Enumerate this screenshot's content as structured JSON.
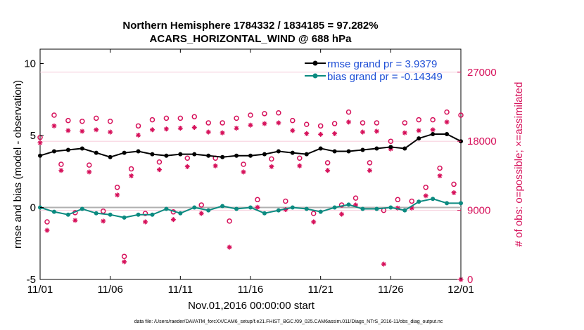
{
  "chart_data": {
    "type": "line",
    "title_line1": "Northern Hemisphere 1784332 / 1834185 = 97.282%",
    "title_line2": "ACARS_HORIZONTAL_WIND @ 688 hPa",
    "xlabel": "Nov.01,2016 00:00:00 start",
    "ylabel": "rmse and bias (model - observation)",
    "y2label": "# of obs: o=possible; ×=assimilated",
    "xlim": [
      0,
      30
    ],
    "ylim": [
      -5,
      11
    ],
    "y2lim": [
      0,
      30000
    ],
    "x_ticks": [
      0,
      5,
      10,
      15,
      20,
      25,
      30
    ],
    "x_tick_labels": [
      "11/01",
      "11/06",
      "11/11",
      "11/16",
      "11/21",
      "11/26",
      "12/01"
    ],
    "y_ticks": [
      -5,
      0,
      5,
      10
    ],
    "y_tick_labels": [
      "-5",
      "0",
      "5",
      "10"
    ],
    "y2_ticks": [
      0,
      9000,
      18000,
      27000
    ],
    "y2_tick_labels": [
      "0",
      "9000",
      "18000",
      "27000"
    ],
    "footnote": "data file: /Users/raeder/DAI/ATM_forcXX/CAM6_setup/f.e21.FHIST_BGC.f09_025.CAM6assim.011/Diags_NTrS_2016-11/obs_diag_output.nc",
    "colors": {
      "rmse": "#000000",
      "bias": "#0b8a80",
      "obs": "#d6105a",
      "legend_text": "#1f4fd6",
      "zero_line": "#b0b0b0"
    },
    "series": [
      {
        "name": "rmse grand pr = 3.9379",
        "key": "rmse",
        "x": [
          0,
          1,
          2,
          3,
          4,
          5,
          6,
          7,
          8,
          9,
          10,
          11,
          12,
          13,
          14,
          15,
          16,
          17,
          18,
          19,
          20,
          21,
          22,
          23,
          24,
          25,
          26,
          27,
          28,
          29,
          30
        ],
        "values": [
          3.6,
          3.9,
          4.0,
          4.1,
          3.8,
          3.5,
          3.8,
          3.9,
          3.7,
          3.6,
          3.7,
          3.7,
          3.6,
          3.5,
          3.6,
          3.6,
          3.7,
          3.9,
          3.8,
          3.7,
          4.1,
          3.9,
          3.9,
          4.0,
          4.1,
          4.2,
          4.1,
          4.8,
          5.1,
          5.1,
          4.6
        ]
      },
      {
        "name": "bias grand pr = -0.14349",
        "key": "bias",
        "x": [
          0,
          1,
          2,
          3,
          4,
          5,
          6,
          7,
          8,
          9,
          10,
          11,
          12,
          13,
          14,
          15,
          16,
          17,
          18,
          19,
          20,
          21,
          22,
          23,
          24,
          25,
          26,
          27,
          28,
          29,
          30
        ],
        "values": [
          0.0,
          -0.3,
          -0.5,
          -0.1,
          -0.4,
          -0.5,
          -0.7,
          -0.5,
          -0.5,
          -0.1,
          -0.4,
          0.0,
          -0.2,
          0.1,
          -0.1,
          0.0,
          -0.4,
          -0.2,
          0.0,
          -0.1,
          -0.3,
          0.0,
          0.2,
          -0.1,
          -0.1,
          0.0,
          -0.2,
          0.4,
          0.6,
          0.3,
          0.3
        ]
      },
      {
        "name": "possible",
        "key": "possible",
        "x": [
          0,
          0.5,
          1,
          1.5,
          2,
          2.5,
          3,
          3.5,
          4,
          4.5,
          5,
          5.5,
          6,
          6.5,
          7,
          7.5,
          8,
          8.5,
          9,
          9.5,
          10,
          10.5,
          11,
          11.5,
          12,
          12.5,
          13,
          13.5,
          14,
          14.5,
          15,
          15.5,
          16,
          16.5,
          17,
          17.5,
          18,
          18.5,
          19,
          19.5,
          20,
          20.5,
          21,
          21.5,
          22,
          22.5,
          23,
          23.5,
          24,
          24.5,
          25,
          25.5,
          26,
          26.5,
          27,
          27.5,
          28,
          28.5,
          29,
          29.5,
          30
        ],
        "values": [
          18500,
          7500,
          21400,
          15000,
          20700,
          8700,
          20600,
          14900,
          21000,
          8900,
          20600,
          12000,
          3000,
          14400,
          20000,
          8600,
          20800,
          15300,
          21000,
          8800,
          21000,
          15800,
          21200,
          9700,
          20400,
          15800,
          20400,
          7600,
          21000,
          15000,
          21400,
          10400,
          21600,
          15700,
          21700,
          10200,
          20700,
          15800,
          20200,
          8600,
          20000,
          15200,
          20300,
          9700,
          21800,
          10600,
          20400,
          15200,
          20400,
          9000,
          18000,
          10400,
          20400,
          10200,
          20800,
          12000,
          20800,
          14500,
          21800,
          12400,
          21400
        ]
      },
      {
        "name": "assimilated",
        "key": "assimilated",
        "x": [
          0,
          0.5,
          1,
          1.5,
          2,
          2.5,
          3,
          3.5,
          4,
          4.5,
          5,
          5.5,
          6,
          6.5,
          7,
          7.5,
          8,
          8.5,
          9,
          9.5,
          10,
          10.5,
          11,
          11.5,
          12,
          12.5,
          13,
          13.5,
          14,
          14.5,
          15,
          15.5,
          16,
          16.5,
          17,
          17.5,
          18,
          18.5,
          19,
          19.5,
          20,
          20.5,
          21,
          21.5,
          22,
          22.5,
          23,
          23.5,
          24,
          24.5,
          25,
          25.5,
          26,
          26.5,
          27,
          27.5,
          28,
          28.5,
          29,
          29.5,
          30
        ],
        "values": [
          17800,
          6400,
          20000,
          14200,
          19400,
          7700,
          19300,
          14000,
          19500,
          7600,
          19200,
          11000,
          2300,
          13500,
          18800,
          7500,
          19500,
          14300,
          19600,
          7800,
          19700,
          14700,
          19800,
          8600,
          19200,
          14800,
          19100,
          4200,
          19700,
          14000,
          20100,
          9400,
          20300,
          14700,
          20400,
          9100,
          19400,
          14800,
          19000,
          7500,
          18900,
          14200,
          19000,
          8500,
          20500,
          9700,
          19200,
          14200,
          19300,
          2000,
          17000,
          9300,
          19100,
          9300,
          19400,
          10900,
          19500,
          13500,
          20500,
          11300,
          0
        ]
      }
    ]
  }
}
